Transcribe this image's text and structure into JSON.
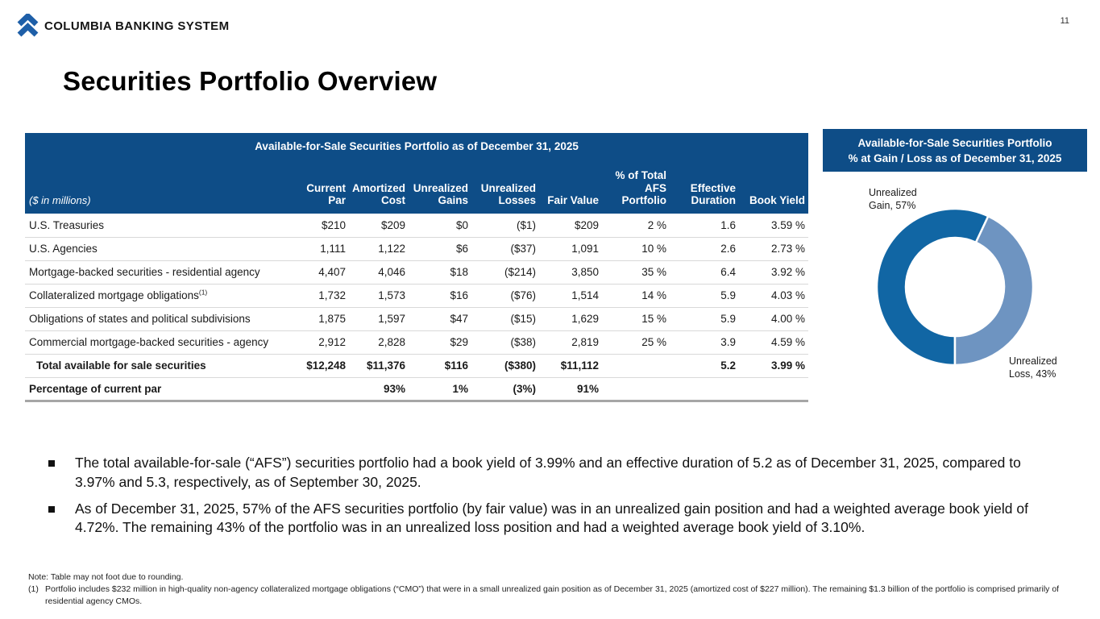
{
  "header": {
    "brand": "COLUMBIA BANKING SYSTEM",
    "page_number": "11"
  },
  "title": "Securities Portfolio Overview",
  "colors": {
    "header_blue": "#0e4d87",
    "gain_blue": "#1166a4",
    "loss_blue": "#6e94c1",
    "brand_blue": "#1e5fa8"
  },
  "table": {
    "title": "Available-for-Sale Securities Portfolio as of December 31, 2025",
    "unit_label": "($ in millions)",
    "columns": [
      "Current Par",
      "Amortized Cost",
      "Unrealized Gains",
      "Unrealized Losses",
      "Fair Value",
      "% of Total AFS Portfolio",
      "Effective Duration",
      "Book Yield"
    ],
    "rows": [
      {
        "label": "U.S. Treasuries",
        "style": "normal",
        "values": [
          "$210",
          "$209",
          "$0",
          "($1)",
          "$209",
          "2 %",
          "1.6",
          "3.59 %"
        ]
      },
      {
        "label": "U.S. Agencies",
        "style": "normal",
        "values": [
          "1,111",
          "1,122",
          "$6",
          "($37)",
          "1,091",
          "10 %",
          "2.6",
          "2.73 %"
        ]
      },
      {
        "label": "Mortgage-backed securities - residential agency",
        "style": "normal",
        "values": [
          "4,407",
          "4,046",
          "$18",
          "($214)",
          "3,850",
          "35 %",
          "6.4",
          "3.92 %"
        ]
      },
      {
        "label": "Collateralized mortgage obligations",
        "sup": "(1)",
        "style": "normal",
        "values": [
          "1,732",
          "1,573",
          "$16",
          "($76)",
          "1,514",
          "14 %",
          "5.9",
          "4.03 %"
        ]
      },
      {
        "label": "Obligations of states and political subdivisions",
        "style": "normal",
        "values": [
          "1,875",
          "1,597",
          "$47",
          "($15)",
          "1,629",
          "15 %",
          "5.9",
          "4.00 %"
        ]
      },
      {
        "label": "Commercial mortgage-backed securities - agency",
        "style": "normal",
        "values": [
          "2,912",
          "2,828",
          "$29",
          "($38)",
          "2,819",
          "25 %",
          "3.9",
          "4.59 %"
        ]
      },
      {
        "label": "Total available for sale securities",
        "style": "total",
        "values": [
          "$12,248",
          "$11,376",
          "$116",
          "($380)",
          "$11,112",
          "",
          "5.2",
          "3.99 %"
        ]
      },
      {
        "label": "Percentage of current par",
        "style": "percent",
        "values": [
          "",
          "93%",
          "1%",
          "(3%)",
          "91%",
          "",
          "",
          ""
        ]
      }
    ]
  },
  "chart": {
    "title_line1": "Available-for-Sale Securities Portfolio",
    "title_line2": "% at Gain / Loss as of December 31, 2025",
    "gain_label": {
      "line1": "Unrealized",
      "line2": "Gain, 57%"
    },
    "loss_label": {
      "line1": "Unrealized",
      "line2": "Loss, 43%"
    }
  },
  "chart_data": {
    "type": "pie",
    "subtype": "donut",
    "title": "Available-for-Sale Securities Portfolio % at Gain / Loss as of December 31, 2025",
    "labels": [
      "Unrealized Gain",
      "Unrealized Loss"
    ],
    "values": [
      57,
      43
    ],
    "unit": "%",
    "colors": [
      "#1166a4",
      "#6e94c1"
    ],
    "legend_position": "data-labels"
  },
  "bullets": [
    "The total available-for-sale (“AFS”) securities portfolio had a book yield of 3.99% and an effective duration of 5.2 as of December 31, 2025, compared to 3.97% and 5.3, respectively, as of September 30, 2025.",
    "As of December 31, 2025, 57% of the AFS securities portfolio (by fair value) was in an unrealized gain position and had a weighted average book yield of 4.72%. The remaining 43% of the portfolio was in an unrealized loss position and had a weighted average book yield of 3.10%."
  ],
  "footnotes": {
    "note": "Note: Table may not foot due to rounding.",
    "fn1_marker": "(1)",
    "fn1_text": "Portfolio includes $232 million in high-quality non-agency collateralized mortgage obligations (“CMO”) that were in a small unrealized gain position as of December 31, 2025 (amortized cost of $227 million). The remaining $1.3 billion of the portfolio is comprised primarily of residential agency CMOs."
  }
}
